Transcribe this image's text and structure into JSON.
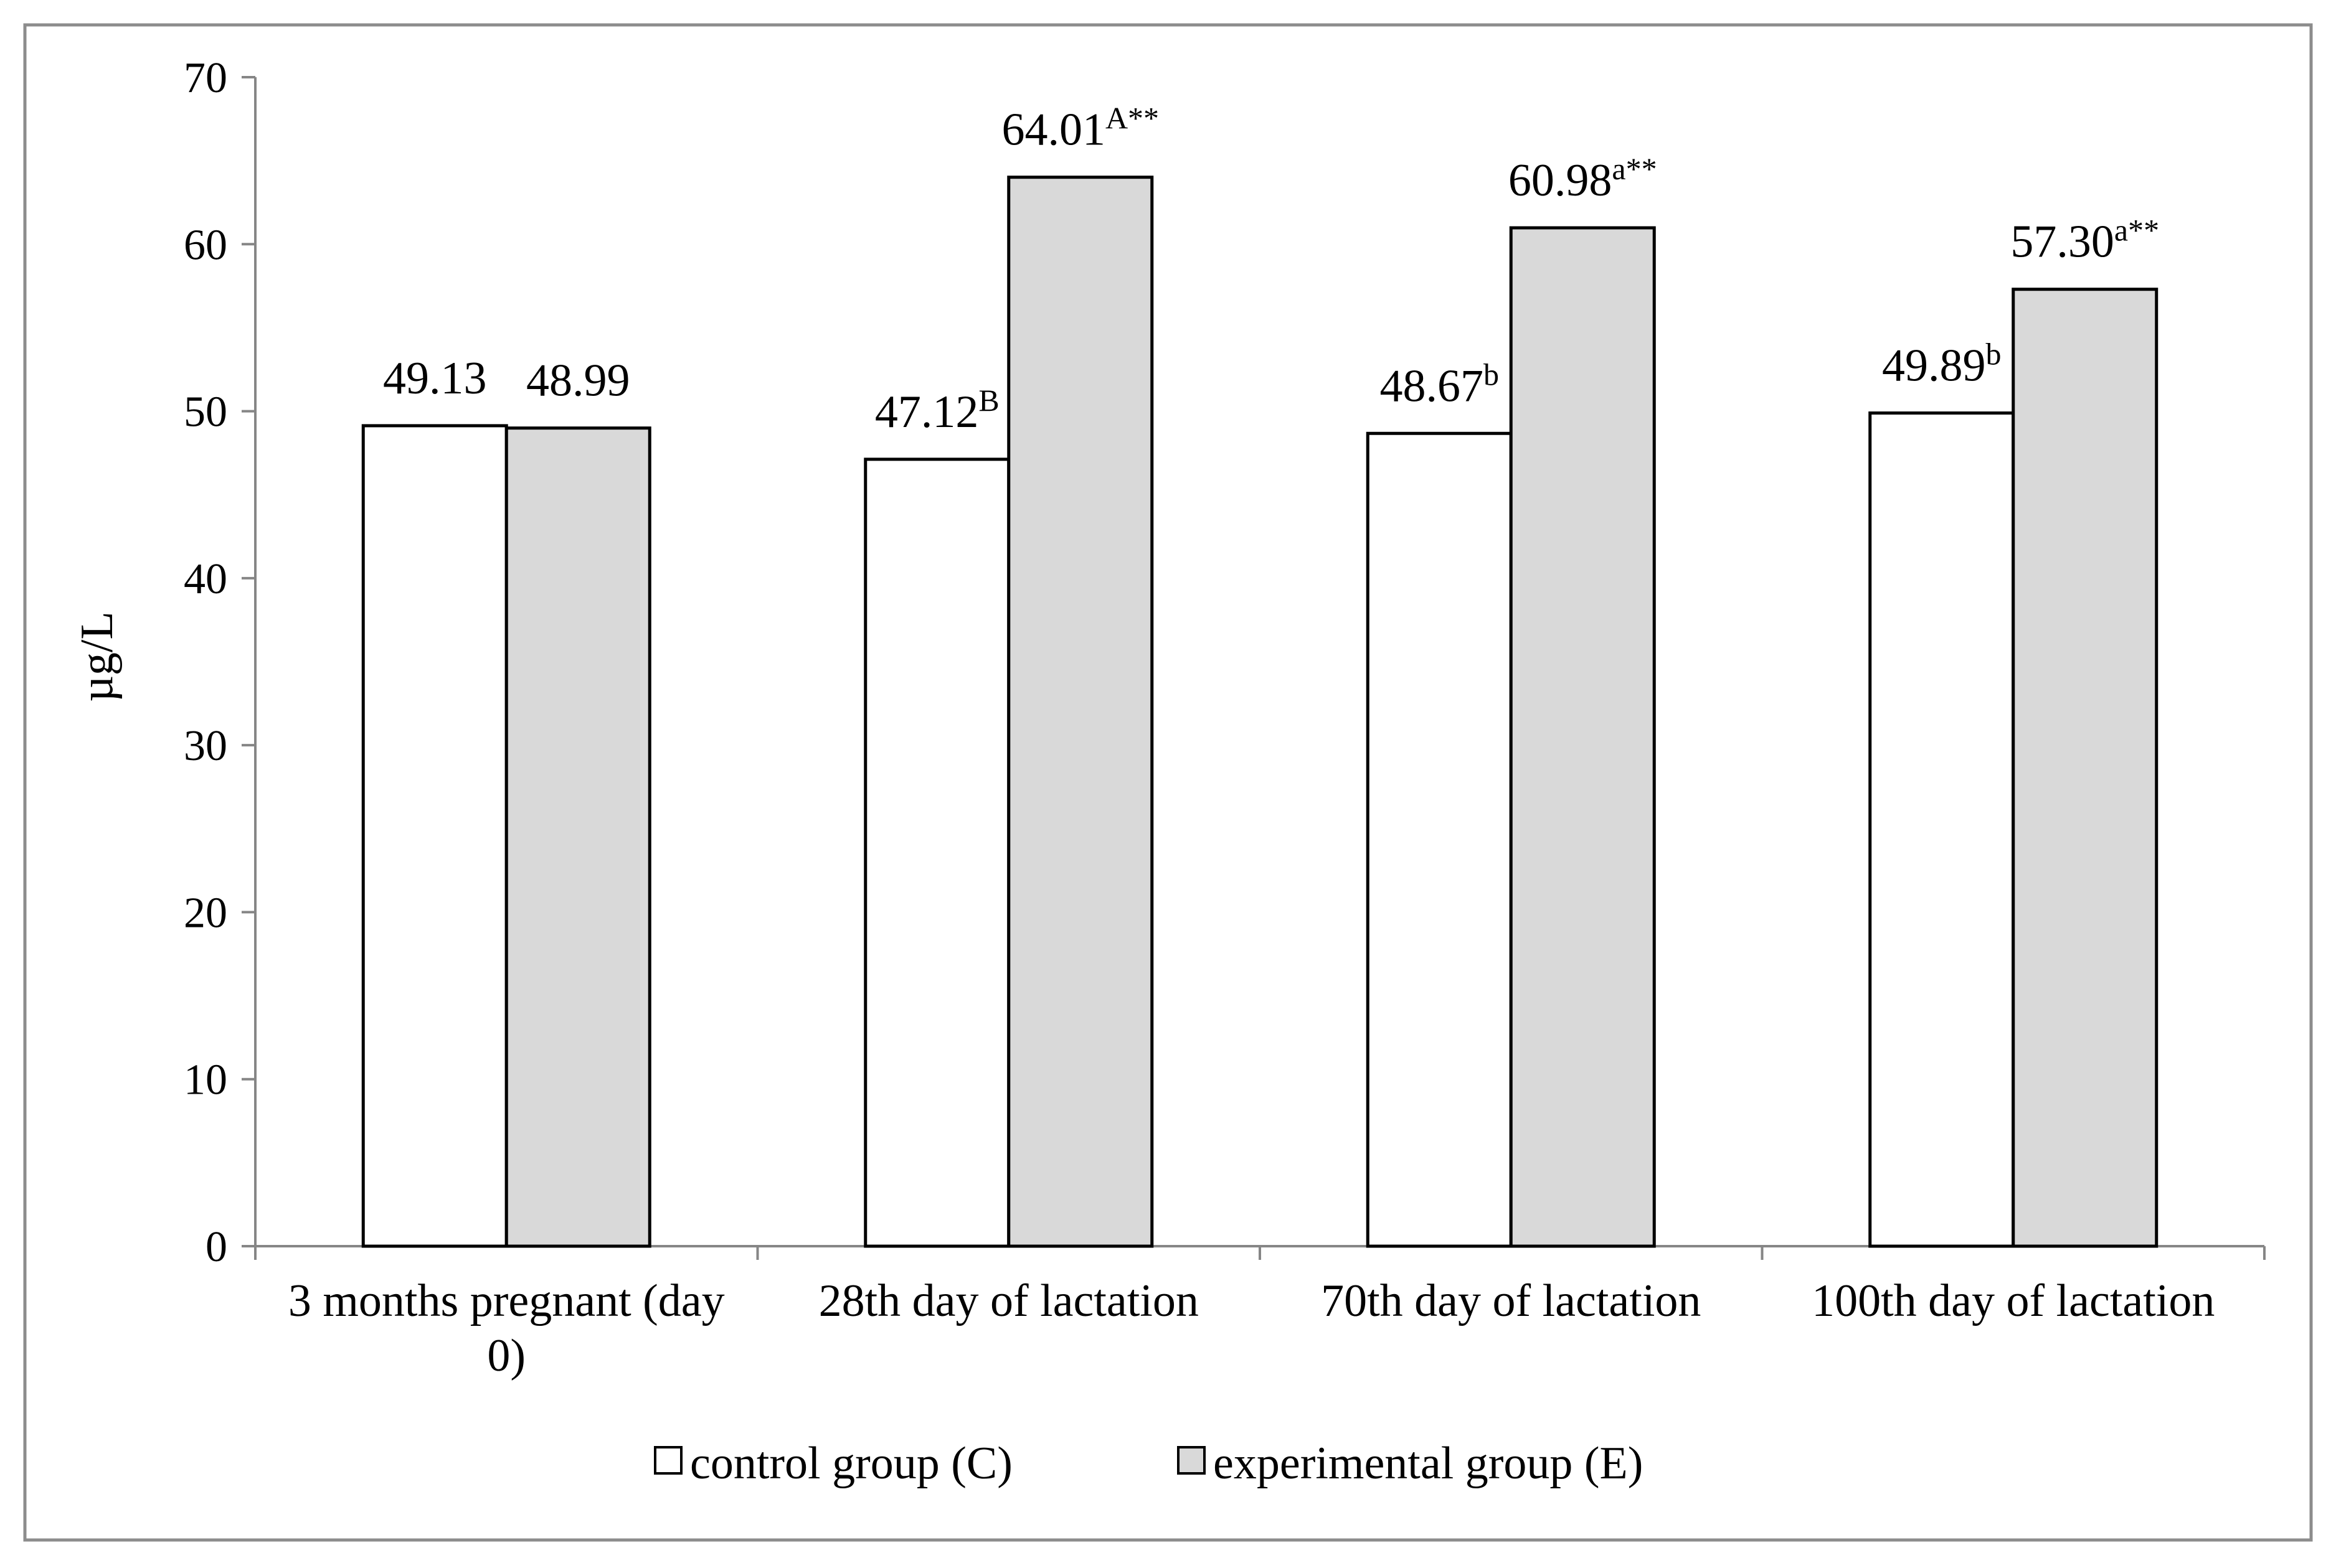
{
  "chart_data": {
    "type": "bar",
    "title": "",
    "xlabel": "",
    "ylabel": "µg/L",
    "ylim": [
      0,
      70
    ],
    "yticks": [
      0,
      10,
      20,
      30,
      40,
      50,
      60,
      70
    ],
    "grid": false,
    "legend_position": "bottom",
    "categories": [
      [
        "3 months pregnant (day",
        "0)"
      ],
      [
        "28th day of lactation"
      ],
      [
        "70th day of lactation"
      ],
      [
        "100th day of lactation"
      ]
    ],
    "series": [
      {
        "name": "control group (C)",
        "color": "#ffffff",
        "values": [
          49.13,
          47.12,
          48.67,
          49.89
        ],
        "labels": [
          {
            "text": "49.13",
            "sup": ""
          },
          {
            "text": "47.12",
            "sup": "B"
          },
          {
            "text": "48.67",
            "sup": "b"
          },
          {
            "text": "49.89",
            "sup": "b"
          }
        ]
      },
      {
        "name": "experimental group (E)",
        "color": "#d9d9d9",
        "values": [
          48.99,
          64.01,
          60.98,
          57.3
        ],
        "labels": [
          {
            "text": "48.99",
            "sup": ""
          },
          {
            "text": "64.01",
            "sup": "A**"
          },
          {
            "text": "60.98",
            "sup": "a**"
          },
          {
            "text": "57.30",
            "sup": "a**"
          }
        ]
      }
    ]
  }
}
